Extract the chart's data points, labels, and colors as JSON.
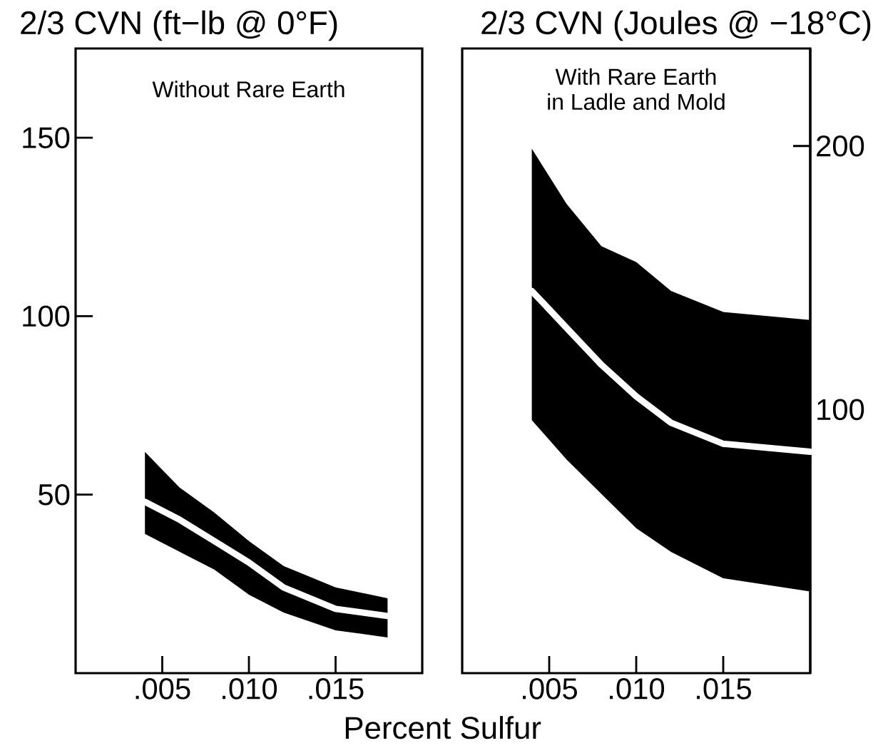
{
  "chart_data": [
    {
      "type": "line",
      "ylabel": "2/3 CVN (ft−lb @ 0°F)",
      "xlabel": "Percent Sulfur",
      "annotations": [
        "Without Rare Earth"
      ],
      "xlim": [
        0,
        0.02
      ],
      "ylim": [
        0,
        175
      ],
      "xticks": [
        {
          "value": 0.005,
          "label": ".005"
        },
        {
          "value": 0.01,
          "label": ".010"
        },
        {
          "value": 0.015,
          "label": ".015"
        }
      ],
      "yticks": [
        50,
        100,
        150
      ],
      "series": [
        {
          "color": "#ffffff",
          "x": [
            0.004,
            0.006,
            0.008,
            0.01,
            0.012,
            0.015,
            0.018
          ],
          "values": [
            48,
            43,
            37,
            31,
            24,
            18,
            16
          ],
          "lower": [
            39,
            34,
            29,
            22,
            17,
            12,
            10
          ],
          "upper": [
            62,
            52,
            45,
            37,
            30,
            24,
            21
          ]
        }
      ]
    },
    {
      "type": "line",
      "y2label": "2/3 CVN (Joules @ −18°C)",
      "annotations": [
        "With Rare Earth",
        "in Ladle and Mold"
      ],
      "xlim": [
        0,
        0.02
      ],
      "y2lim": [
        0,
        237
      ],
      "xticks": [
        {
          "value": 0.005,
          "label": ".005"
        },
        {
          "value": 0.01,
          "label": ".010"
        },
        {
          "value": 0.015,
          "label": ".015"
        }
      ],
      "y2ticks": [
        100,
        200
      ],
      "series": [
        {
          "color": "#ffffff",
          "axis": "y2",
          "x": [
            0.004,
            0.006,
            0.008,
            0.01,
            0.012,
            0.015,
            0.02
          ],
          "values": [
            145,
            131,
            117,
            105,
            95,
            87,
            84
          ],
          "lower": [
            96,
            81,
            68,
            55,
            46,
            36,
            31
          ],
          "upper": [
            199,
            178,
            162,
            156,
            145,
            137,
            134
          ]
        }
      ]
    }
  ]
}
